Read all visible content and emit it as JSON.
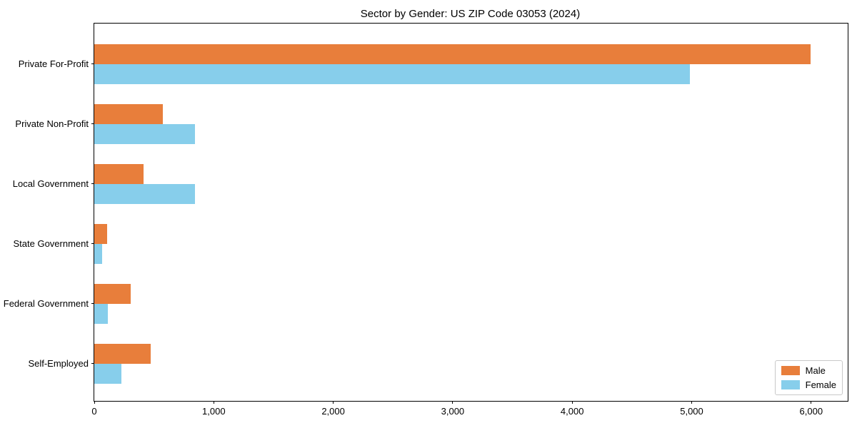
{
  "title": "Sector by Gender: US ZIP Code 03053 (2024)",
  "colors": {
    "male": "#E87E3B",
    "female": "#87CEEB",
    "axis": "#000000",
    "legend_border": "#c9c9c9",
    "background": "#ffffff"
  },
  "chart_data": {
    "type": "bar",
    "orientation": "horizontal",
    "title": "Sector by Gender: US ZIP Code 03053 (2024)",
    "categories": [
      "Private For-Profit",
      "Private Non-Profit",
      "Local Government",
      "State Government",
      "Federal Government",
      "Self-Employed"
    ],
    "series": [
      {
        "name": "Male",
        "color": "#E87E3B",
        "values": [
          5995,
          575,
          410,
          105,
          305,
          470
        ]
      },
      {
        "name": "Female",
        "color": "#87CEEB",
        "values": [
          4985,
          840,
          845,
          65,
          115,
          225
        ]
      }
    ],
    "xlabel": "",
    "ylabel": "",
    "xlim": [
      0,
      6306
    ],
    "x_ticks": [
      0,
      1000,
      2000,
      3000,
      4000,
      5000,
      6000
    ],
    "x_tick_labels": [
      "0",
      "1,000",
      "2,000",
      "3,000",
      "4,000",
      "5,000",
      "6,000"
    ],
    "grid": false,
    "legend_position": "lower right"
  },
  "legend": {
    "items": [
      {
        "label": "Male",
        "color": "#E87E3B"
      },
      {
        "label": "Female",
        "color": "#87CEEB"
      }
    ]
  }
}
